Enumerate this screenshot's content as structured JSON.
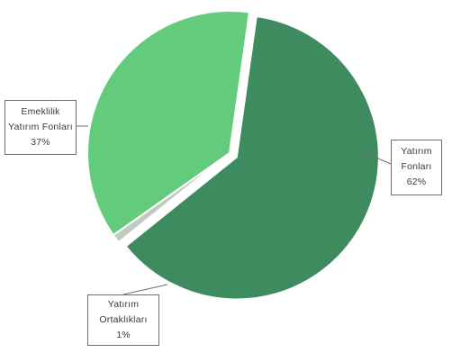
{
  "chart_data": {
    "type": "pie",
    "title": "",
    "slices": [
      {
        "name": "Yatırım Fonları",
        "label_lines": [
          "Yatırım",
          "Fonları"
        ],
        "percent_label": "62%",
        "value": 62,
        "color": "#3e8b5f"
      },
      {
        "name": "Yatırım Ortaklıkları",
        "label_lines": [
          "Yatırım",
          "Ortaklıkları"
        ],
        "percent_label": "1%",
        "value": 1,
        "color": "#c2c9c3"
      },
      {
        "name": "Emeklilik Yatırım Fonları",
        "label_lines": [
          "Emeklilik",
          "Yatırım Fonları"
        ],
        "percent_label": "37%",
        "value": 37,
        "color": "#63cc7c"
      }
    ],
    "exploded_slice": "Yatırım Fonları",
    "start_angle_deg": 8,
    "direction": "clockwise",
    "legend": "none",
    "labels": "callouts"
  }
}
